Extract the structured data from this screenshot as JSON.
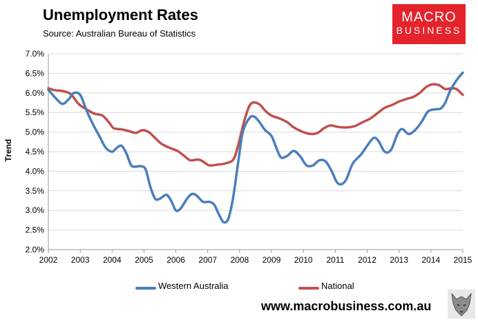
{
  "header": {
    "title": "Unemployment Rates",
    "subtitle": "Source: Australian Bureau of Statistics"
  },
  "logo": {
    "line1": "MACRO",
    "line2": "BUSINESS"
  },
  "footer": {
    "url": "www.macrobusiness.com.au"
  },
  "chart_data": {
    "type": "line",
    "title": "Unemployment Rates",
    "xlabel": "",
    "ylabel": "Trend",
    "xlim": [
      2002,
      2015
    ],
    "ylim": [
      2.0,
      7.0
    ],
    "y_ticks": [
      "2.0%",
      "2.5%",
      "3.0%",
      "3.5%",
      "4.0%",
      "4.5%",
      "5.0%",
      "5.5%",
      "6.0%",
      "6.5%",
      "7.0%"
    ],
    "x_ticks": [
      "2002",
      "2003",
      "2004",
      "2005",
      "2006",
      "2007",
      "2008",
      "2009",
      "2010",
      "2011",
      "2012",
      "2013",
      "2014",
      "2015"
    ],
    "grid": "horizontal",
    "legend_position": "bottom",
    "series": [
      {
        "name": "Western Australia",
        "color": "#4a7ebb",
        "points": [
          [
            2002.0,
            6.08
          ],
          [
            2002.25,
            5.85
          ],
          [
            2002.45,
            5.72
          ],
          [
            2002.65,
            5.85
          ],
          [
            2002.8,
            6.0
          ],
          [
            2003.0,
            5.95
          ],
          [
            2003.2,
            5.55
          ],
          [
            2003.4,
            5.2
          ],
          [
            2003.6,
            4.9
          ],
          [
            2003.8,
            4.6
          ],
          [
            2004.0,
            4.5
          ],
          [
            2004.15,
            4.6
          ],
          [
            2004.3,
            4.65
          ],
          [
            2004.45,
            4.45
          ],
          [
            2004.6,
            4.15
          ],
          [
            2004.75,
            4.12
          ],
          [
            2004.9,
            4.13
          ],
          [
            2005.05,
            4.05
          ],
          [
            2005.2,
            3.6
          ],
          [
            2005.35,
            3.3
          ],
          [
            2005.5,
            3.3
          ],
          [
            2005.7,
            3.4
          ],
          [
            2005.85,
            3.25
          ],
          [
            2006.0,
            3.0
          ],
          [
            2006.15,
            3.05
          ],
          [
            2006.35,
            3.3
          ],
          [
            2006.5,
            3.42
          ],
          [
            2006.65,
            3.38
          ],
          [
            2006.85,
            3.22
          ],
          [
            2007.05,
            3.22
          ],
          [
            2007.2,
            3.15
          ],
          [
            2007.35,
            2.9
          ],
          [
            2007.5,
            2.7
          ],
          [
            2007.65,
            2.8
          ],
          [
            2007.8,
            3.35
          ],
          [
            2007.95,
            4.2
          ],
          [
            2008.1,
            5.0
          ],
          [
            2008.3,
            5.35
          ],
          [
            2008.45,
            5.4
          ],
          [
            2008.6,
            5.28
          ],
          [
            2008.8,
            5.05
          ],
          [
            2009.0,
            4.9
          ],
          [
            2009.15,
            4.6
          ],
          [
            2009.3,
            4.35
          ],
          [
            2009.5,
            4.4
          ],
          [
            2009.7,
            4.52
          ],
          [
            2009.9,
            4.38
          ],
          [
            2010.1,
            4.15
          ],
          [
            2010.3,
            4.15
          ],
          [
            2010.5,
            4.28
          ],
          [
            2010.7,
            4.25
          ],
          [
            2010.9,
            3.98
          ],
          [
            2011.05,
            3.72
          ],
          [
            2011.2,
            3.67
          ],
          [
            2011.35,
            3.8
          ],
          [
            2011.55,
            4.2
          ],
          [
            2011.8,
            4.42
          ],
          [
            2012.0,
            4.65
          ],
          [
            2012.2,
            4.85
          ],
          [
            2012.35,
            4.78
          ],
          [
            2012.55,
            4.5
          ],
          [
            2012.75,
            4.55
          ],
          [
            2012.95,
            4.95
          ],
          [
            2013.1,
            5.08
          ],
          [
            2013.3,
            4.95
          ],
          [
            2013.5,
            5.05
          ],
          [
            2013.7,
            5.25
          ],
          [
            2013.9,
            5.52
          ],
          [
            2014.1,
            5.58
          ],
          [
            2014.3,
            5.6
          ],
          [
            2014.45,
            5.75
          ],
          [
            2014.6,
            6.05
          ],
          [
            2014.8,
            6.32
          ],
          [
            2015.0,
            6.52
          ]
        ]
      },
      {
        "name": "National",
        "color": "#c0504d",
        "points": [
          [
            2002.0,
            6.12
          ],
          [
            2002.2,
            6.07
          ],
          [
            2002.45,
            6.05
          ],
          [
            2002.7,
            5.97
          ],
          [
            2002.95,
            5.72
          ],
          [
            2003.2,
            5.58
          ],
          [
            2003.45,
            5.47
          ],
          [
            2003.7,
            5.42
          ],
          [
            2003.9,
            5.25
          ],
          [
            2004.05,
            5.1
          ],
          [
            2004.3,
            5.07
          ],
          [
            2004.55,
            5.02
          ],
          [
            2004.75,
            4.98
          ],
          [
            2004.95,
            5.05
          ],
          [
            2005.15,
            5.0
          ],
          [
            2005.35,
            4.85
          ],
          [
            2005.55,
            4.7
          ],
          [
            2005.8,
            4.6
          ],
          [
            2006.05,
            4.52
          ],
          [
            2006.25,
            4.4
          ],
          [
            2006.45,
            4.28
          ],
          [
            2006.7,
            4.3
          ],
          [
            2006.85,
            4.25
          ],
          [
            2007.05,
            4.15
          ],
          [
            2007.3,
            4.17
          ],
          [
            2007.55,
            4.2
          ],
          [
            2007.8,
            4.3
          ],
          [
            2007.95,
            4.65
          ],
          [
            2008.15,
            5.3
          ],
          [
            2008.35,
            5.72
          ],
          [
            2008.6,
            5.72
          ],
          [
            2008.8,
            5.55
          ],
          [
            2009.0,
            5.42
          ],
          [
            2009.25,
            5.35
          ],
          [
            2009.5,
            5.25
          ],
          [
            2009.7,
            5.12
          ],
          [
            2010.0,
            5.0
          ],
          [
            2010.25,
            4.95
          ],
          [
            2010.45,
            4.98
          ],
          [
            2010.65,
            5.1
          ],
          [
            2010.85,
            5.17
          ],
          [
            2011.1,
            5.13
          ],
          [
            2011.35,
            5.12
          ],
          [
            2011.6,
            5.15
          ],
          [
            2011.85,
            5.25
          ],
          [
            2012.1,
            5.35
          ],
          [
            2012.35,
            5.5
          ],
          [
            2012.55,
            5.62
          ],
          [
            2012.8,
            5.7
          ],
          [
            2013.0,
            5.78
          ],
          [
            2013.25,
            5.85
          ],
          [
            2013.45,
            5.9
          ],
          [
            2013.65,
            6.0
          ],
          [
            2013.85,
            6.15
          ],
          [
            2014.05,
            6.22
          ],
          [
            2014.25,
            6.2
          ],
          [
            2014.45,
            6.1
          ],
          [
            2014.65,
            6.12
          ],
          [
            2014.8,
            6.1
          ],
          [
            2015.0,
            5.95
          ]
        ]
      }
    ]
  }
}
